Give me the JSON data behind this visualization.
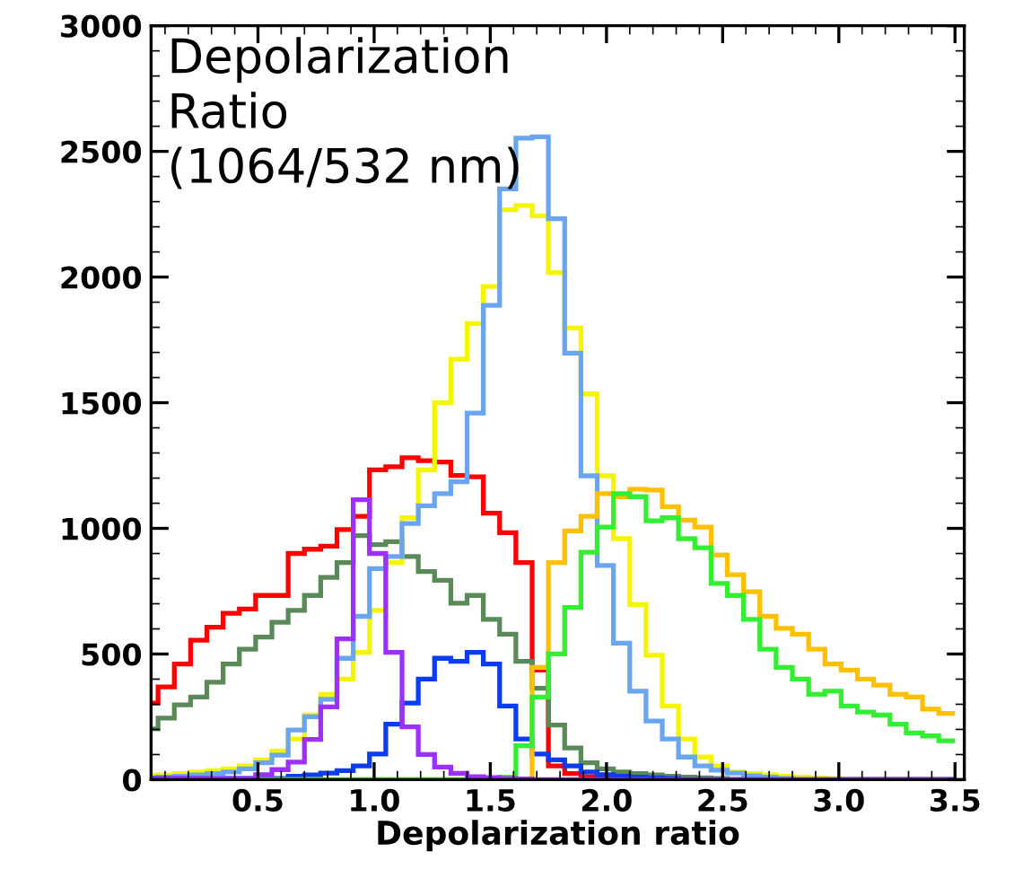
{
  "chart_data": {
    "type": "histogram",
    "xlabel": "Depolarization ratio",
    "annotations": [
      "Depolarization\nRatio\n(1064/532 nm)"
    ],
    "bins": [
      0.0,
      0.07,
      0.14,
      0.21,
      0.28,
      0.35,
      0.42,
      0.49,
      0.56,
      0.63,
      0.7,
      0.77,
      0.84,
      0.91,
      0.98,
      1.05,
      1.12,
      1.19,
      1.26,
      1.33,
      1.4,
      1.47,
      1.54,
      1.61,
      1.68,
      1.75,
      1.82,
      1.89,
      1.96,
      2.03,
      2.1,
      2.17,
      2.24,
      2.31,
      2.38,
      2.45,
      2.52,
      2.59,
      2.66,
      2.73,
      2.8,
      2.87,
      2.94,
      3.01,
      3.08,
      3.15,
      3.22,
      3.29,
      3.36,
      3.43,
      3.5
    ],
    "series": [
      {
        "color": "#ff0000",
        "values": [
          305,
          369,
          460,
          555,
          607,
          662,
          679,
          733,
          733,
          900,
          917,
          929,
          995,
          1048,
          1233,
          1245,
          1281,
          1269,
          1264,
          1210,
          1205,
          1060,
          983,
          864,
          436,
          55,
          24,
          12,
          5,
          0,
          0,
          0,
          0,
          0,
          0,
          0,
          0,
          0,
          0,
          0,
          0,
          0,
          0,
          0,
          0,
          0,
          0,
          0,
          0,
          0
        ]
      },
      {
        "color": "#5a8a5a",
        "values": [
          202,
          245,
          298,
          329,
          388,
          460,
          519,
          567,
          626,
          674,
          733,
          805,
          864,
          971,
          935,
          947,
          888,
          828,
          793,
          702,
          733,
          638,
          579,
          471,
          364,
          217,
          126,
          67,
          43,
          31,
          24,
          19,
          14,
          10,
          7,
          5,
          0,
          0,
          0,
          0,
          0,
          0,
          0,
          0,
          0,
          0,
          0,
          0,
          0,
          0
        ]
      },
      {
        "color": "#f5f500",
        "values": [
          17,
          19,
          24,
          31,
          36,
          43,
          55,
          79,
          114,
          162,
          257,
          340,
          400,
          507,
          674,
          864,
          1042,
          1233,
          1500,
          1673,
          1815,
          1962,
          2268,
          2285,
          2244,
          2018,
          1797,
          1535,
          1209,
          959,
          697,
          495,
          293,
          162,
          90,
          55,
          31,
          24,
          19,
          14,
          10,
          7,
          5,
          0,
          0,
          0,
          0,
          0,
          0,
          0
        ]
      },
      {
        "color": "#6aa6f0",
        "values": [
          7,
          10,
          14,
          19,
          24,
          31,
          43,
          67,
          98,
          198,
          250,
          320,
          483,
          650,
          840,
          888,
          1019,
          1090,
          1138,
          1185,
          1459,
          1887,
          2351,
          2553,
          2558,
          2232,
          1697,
          1209,
          852,
          543,
          352,
          233,
          162,
          90,
          55,
          38,
          26,
          15,
          10,
          5,
          0,
          0,
          0,
          0,
          0,
          0,
          0,
          0,
          0,
          0
        ]
      },
      {
        "color": "#0a3cf0",
        "values": [
          5,
          5,
          5,
          5,
          5,
          5,
          5,
          5,
          5,
          14,
          19,
          26,
          36,
          55,
          102,
          221,
          305,
          400,
          483,
          471,
          507,
          460,
          293,
          162,
          102,
          79,
          55,
          31,
          20,
          14,
          10,
          7,
          5,
          0,
          0,
          0,
          0,
          0,
          0,
          0,
          0,
          0,
          0,
          0,
          0,
          0,
          0,
          0,
          0,
          0
        ]
      },
      {
        "color": "#ffc000",
        "values": [
          0,
          0,
          0,
          0,
          0,
          0,
          0,
          0,
          0,
          0,
          0,
          0,
          0,
          0,
          0,
          0,
          0,
          0,
          0,
          0,
          0,
          0,
          0,
          0,
          447,
          864,
          990,
          1048,
          1138,
          1126,
          1156,
          1152,
          1086,
          1033,
          1005,
          894,
          816,
          748,
          650,
          602,
          579,
          519,
          460,
          436,
          400,
          376,
          340,
          329,
          281,
          264
        ]
      },
      {
        "color": "#33ee33",
        "values": [
          0,
          0,
          0,
          0,
          0,
          0,
          0,
          0,
          0,
          0,
          0,
          0,
          0,
          0,
          0,
          0,
          0,
          0,
          0,
          0,
          0,
          0,
          10,
          135,
          329,
          500,
          685,
          905,
          1005,
          1138,
          1126,
          1030,
          1042,
          959,
          923,
          781,
          733,
          638,
          519,
          447,
          400,
          340,
          352,
          293,
          269,
          257,
          221,
          186,
          174,
          155
        ]
      },
      {
        "color": "#9b30ff",
        "values": [
          5,
          5,
          5,
          5,
          5,
          5,
          5,
          20,
          40,
          70,
          160,
          290,
          560,
          1114,
          900,
          507,
          210,
          100,
          50,
          25,
          12,
          8,
          5,
          3,
          0,
          0,
          0,
          0,
          0,
          0,
          0,
          0,
          0,
          0,
          0,
          0,
          0,
          0,
          0,
          0,
          0,
          0,
          0,
          0,
          0,
          0,
          0,
          0,
          0,
          0
        ]
      }
    ],
    "xlim": [
      0.04,
      3.54
    ],
    "ylim": [
      0,
      3000
    ],
    "xticks": [
      {
        "value": 0.5,
        "label": "0.5"
      },
      {
        "value": 1,
        "label": "1.0"
      },
      {
        "value": 1.5,
        "label": "1.5"
      },
      {
        "value": 2,
        "label": "2.0"
      },
      {
        "value": 2.5,
        "label": "2.5"
      },
      {
        "value": 3,
        "label": "3.0"
      },
      {
        "value": 3.5,
        "label": "3.5"
      }
    ],
    "yticks": [
      0,
      500,
      1000,
      1500,
      2000,
      2500,
      3000
    ],
    "grid": false
  }
}
